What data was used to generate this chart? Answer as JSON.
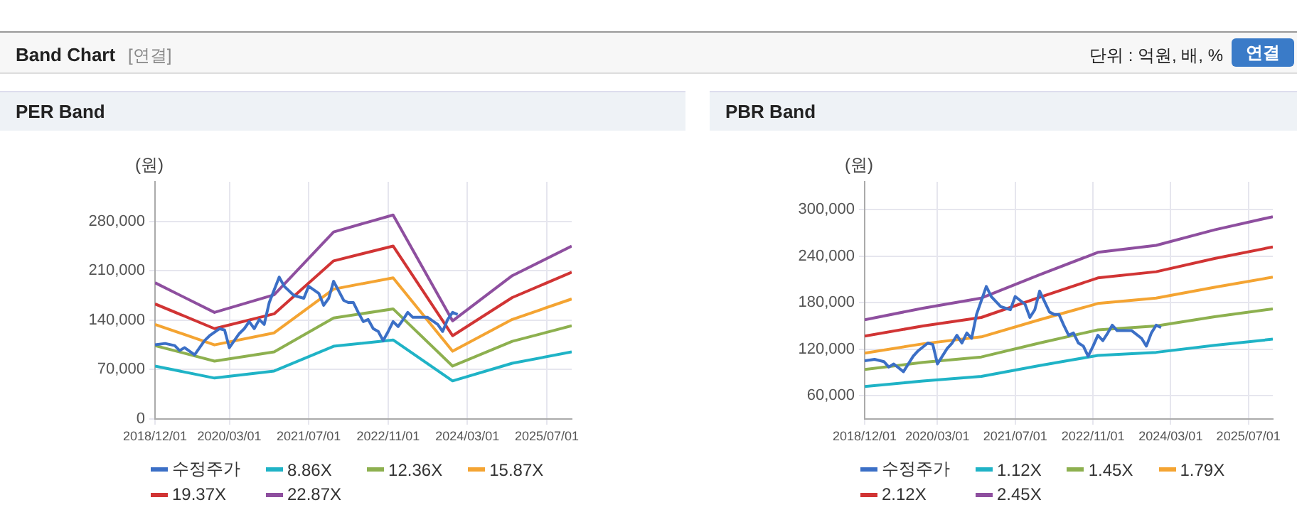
{
  "chart_data": [
    {
      "type": "line",
      "title": "PER Band",
      "ylabel": "(원)",
      "annotations": [
        "Band Chart",
        "[연결]",
        "단위 : 억원, 배, %",
        "연결"
      ],
      "grid": true,
      "legend": "bottom",
      "marker": "none",
      "line_style": "solid",
      "xlim": [
        "2018-12-01",
        "2025-12-01"
      ],
      "xticks": [
        {
          "value": "2018-12-01",
          "label": "2018/12/01"
        },
        {
          "value": "2020-03-01",
          "label": "2020/03/01"
        },
        {
          "value": "2021-07-01",
          "label": "2021/07/01"
        },
        {
          "value": "2022-11-01",
          "label": "2022/11/01"
        },
        {
          "value": "2024-03-01",
          "label": "2024/03/01"
        },
        {
          "value": "2025-07-01",
          "label": "2025/07/01"
        }
      ],
      "ylim": [
        0,
        336000
      ],
      "yticks": [
        0,
        {
          "value": 70000,
          "label": "70,000"
        },
        {
          "value": 140000,
          "label": "140,000"
        },
        {
          "value": 210000,
          "label": "210,000"
        },
        {
          "value": 280000,
          "label": "280,000"
        }
      ],
      "x": [
        "2018-12",
        "2019-12",
        "2020-12",
        "2021-12",
        "2022-12",
        "2023-12",
        "2024-12",
        "2025-12"
      ],
      "series": [
        {
          "name": "수정주가",
          "color": "#3b6fc6",
          "x": [
            "2018-12",
            "2019-02",
            "2019-04",
            "2019-05",
            "2019-06",
            "2019-08",
            "2019-10",
            "2019-11",
            "2020-01",
            "2020-02",
            "2020-03",
            "2020-05",
            "2020-06",
            "2020-07",
            "2020-08",
            "2020-09",
            "2020-10",
            "2020-11",
            "2021-01",
            "2021-02",
            "2021-04",
            "2021-06",
            "2021-07",
            "2021-09",
            "2021-10",
            "2021-11",
            "2021-12",
            "2022-02",
            "2022-03",
            "2022-04",
            "2022-05",
            "2022-06",
            "2022-07",
            "2022-08",
            "2022-09",
            "2022-10",
            "2022-11",
            "2022-12",
            "2023-01",
            "2023-02",
            "2023-03",
            "2023-04",
            "2023-07",
            "2023-09",
            "2023-10",
            "2023-11",
            "2023-12",
            "2024-01"
          ],
          "values": [
            105000,
            107000,
            104000,
            97000,
            101000,
            91000,
            111000,
            118000,
            128000,
            126000,
            101000,
            121000,
            128000,
            138000,
            128000,
            141000,
            134000,
            165000,
            201000,
            188000,
            175000,
            171000,
            188000,
            178000,
            161000,
            171000,
            195000,
            168000,
            165000,
            165000,
            151000,
            138000,
            141000,
            128000,
            124000,
            111000,
            124000,
            138000,
            131000,
            141000,
            151000,
            144000,
            144000,
            134000,
            124000,
            141000,
            151000,
            148000
          ]
        },
        {
          "name": "8.86X",
          "color": "#1fb3c6",
          "values": [
            75000,
            58000,
            68000,
            103000,
            112000,
            54000,
            79000,
            95000
          ]
        },
        {
          "name": "12.36X",
          "color": "#8db04f",
          "values": [
            104000,
            82000,
            95000,
            143000,
            156000,
            75000,
            110000,
            132000
          ]
        },
        {
          "name": "15.87X",
          "color": "#f4a432",
          "values": [
            134000,
            105000,
            122000,
            184000,
            200000,
            96000,
            141000,
            170000
          ]
        },
        {
          "name": "19.37X",
          "color": "#d13434",
          "values": [
            163000,
            128000,
            149000,
            224000,
            245000,
            118000,
            172000,
            208000
          ]
        },
        {
          "name": "22.87X",
          "color": "#8e4f9f",
          "values": [
            193000,
            151000,
            176000,
            265000,
            289000,
            139000,
            203000,
            245000
          ]
        }
      ]
    },
    {
      "type": "line",
      "title": "PBR Band",
      "ylabel": "(원)",
      "grid": true,
      "legend": "bottom",
      "marker": "none",
      "line_style": "solid",
      "xlim": [
        "2018-12-01",
        "2025-12-01"
      ],
      "xticks": [
        {
          "value": "2018-12-01",
          "label": "2018/12/01"
        },
        {
          "value": "2020-03-01",
          "label": "2020/03/01"
        },
        {
          "value": "2021-07-01",
          "label": "2021/07/01"
        },
        {
          "value": "2022-11-01",
          "label": "2022/11/01"
        },
        {
          "value": "2024-03-01",
          "label": "2024/03/01"
        },
        {
          "value": "2025-07-01",
          "label": "2025/07/01"
        }
      ],
      "ylim": [
        30000,
        336000
      ],
      "yticks": [
        {
          "value": 60000,
          "label": "60,000"
        },
        {
          "value": 120000,
          "label": "120,000"
        },
        {
          "value": 180000,
          "label": "180,000"
        },
        {
          "value": 240000,
          "label": "240,000"
        },
        {
          "value": 300000,
          "label": "300,000"
        }
      ],
      "x": [
        "2018-12",
        "2019-12",
        "2020-12",
        "2021-12",
        "2022-12",
        "2023-12",
        "2024-12",
        "2025-12"
      ],
      "series": [
        {
          "name": "수정주가",
          "color": "#3b6fc6",
          "x": [
            "2018-12",
            "2019-02",
            "2019-04",
            "2019-05",
            "2019-06",
            "2019-08",
            "2019-10",
            "2019-11",
            "2020-01",
            "2020-02",
            "2020-03",
            "2020-05",
            "2020-06",
            "2020-07",
            "2020-08",
            "2020-09",
            "2020-10",
            "2020-11",
            "2021-01",
            "2021-02",
            "2021-04",
            "2021-06",
            "2021-07",
            "2021-09",
            "2021-10",
            "2021-11",
            "2021-12",
            "2022-02",
            "2022-03",
            "2022-04",
            "2022-05",
            "2022-06",
            "2022-07",
            "2022-08",
            "2022-09",
            "2022-10",
            "2022-11",
            "2022-12",
            "2023-01",
            "2023-02",
            "2023-03",
            "2023-04",
            "2023-07",
            "2023-09",
            "2023-10",
            "2023-11",
            "2023-12",
            "2024-01"
          ],
          "values": [
            105000,
            107000,
            104000,
            97000,
            101000,
            91000,
            111000,
            118000,
            128000,
            126000,
            101000,
            121000,
            128000,
            138000,
            128000,
            141000,
            134000,
            165000,
            201000,
            188000,
            175000,
            171000,
            188000,
            178000,
            161000,
            171000,
            195000,
            168000,
            165000,
            165000,
            151000,
            138000,
            141000,
            128000,
            124000,
            111000,
            124000,
            138000,
            131000,
            141000,
            151000,
            144000,
            144000,
            134000,
            124000,
            141000,
            151000,
            148000
          ]
        },
        {
          "name": "1.12X",
          "color": "#1fb3c6",
          "values": [
            72000,
            79000,
            85000,
            99000,
            112000,
            116000,
            125000,
            133000
          ]
        },
        {
          "name": "1.45X",
          "color": "#8db04f",
          "values": [
            94000,
            103000,
            110000,
            128000,
            145000,
            150000,
            162000,
            172000
          ]
        },
        {
          "name": "1.79X",
          "color": "#f4a432",
          "values": [
            115000,
            127000,
            136000,
            158000,
            179000,
            186000,
            200000,
            213000
          ]
        },
        {
          "name": "2.12X",
          "color": "#d13434",
          "values": [
            137000,
            150000,
            161000,
            187000,
            212000,
            220000,
            237000,
            252000
          ]
        },
        {
          "name": "2.45X",
          "color": "#8e4f9f",
          "values": [
            158000,
            173000,
            186000,
            216000,
            245000,
            254000,
            274000,
            291000
          ]
        }
      ]
    }
  ]
}
